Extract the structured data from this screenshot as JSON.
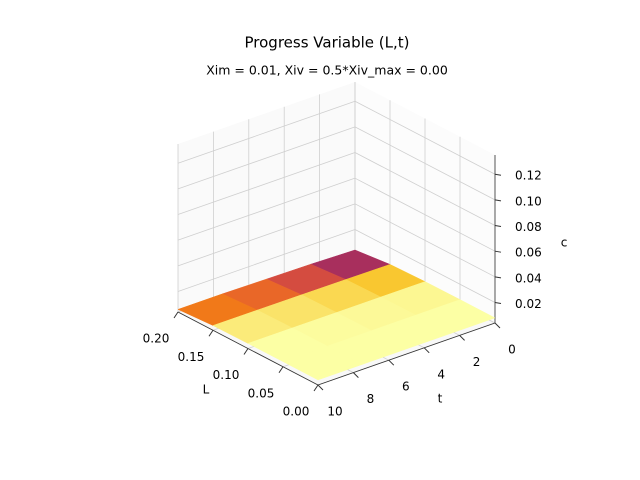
{
  "chart_data": {
    "type": "surface3d",
    "title": "Progress Variable (L,t)",
    "subtitle": "Xim = 0.01, Xiv = 0.5*Xiv_max = 0.00",
    "x_label": "L",
    "y_label": "t",
    "z_label": "c",
    "colormap": "inferno",
    "grid": true,
    "x": [
      0,
      0.05,
      0.1,
      0.15,
      0.2
    ],
    "y": [
      0,
      2.5,
      5,
      7.5,
      10
    ],
    "z": [
      [
        0.008,
        0.008,
        0.0078,
        0.007,
        0.004
      ],
      [
        0.008,
        0.008,
        0.0079,
        0.0073,
        0.005
      ],
      [
        0.008,
        0.008,
        0.0079,
        0.0075,
        0.0055
      ],
      [
        0.008,
        0.008,
        0.008,
        0.0076,
        0.006
      ],
      [
        0.008,
        0.008,
        0.008,
        0.0077,
        0.006
      ]
    ],
    "xlim": [
      0,
      0.2
    ],
    "ylim": [
      0,
      10
    ],
    "zlim": [
      0.004,
      0.135
    ],
    "xticks": [
      {
        "value": 0,
        "label": "0.00"
      },
      {
        "value": 0.05,
        "label": "0.05"
      },
      {
        "value": 0.1,
        "label": "0.10"
      },
      {
        "value": 0.15,
        "label": "0.15"
      },
      {
        "value": 0.2,
        "label": "0.20"
      }
    ],
    "yticks": [
      0,
      2,
      4,
      6,
      8,
      10
    ],
    "zticks": [
      {
        "value": 0.02,
        "label": "0.02"
      },
      {
        "value": 0.04,
        "label": "0.04"
      },
      {
        "value": 0.06,
        "label": "0.06"
      },
      {
        "value": 0.08,
        "label": "0.08"
      },
      {
        "value": 0.1,
        "label": "0.10"
      },
      {
        "value": 0.12,
        "label": "0.12"
      }
    ]
  }
}
